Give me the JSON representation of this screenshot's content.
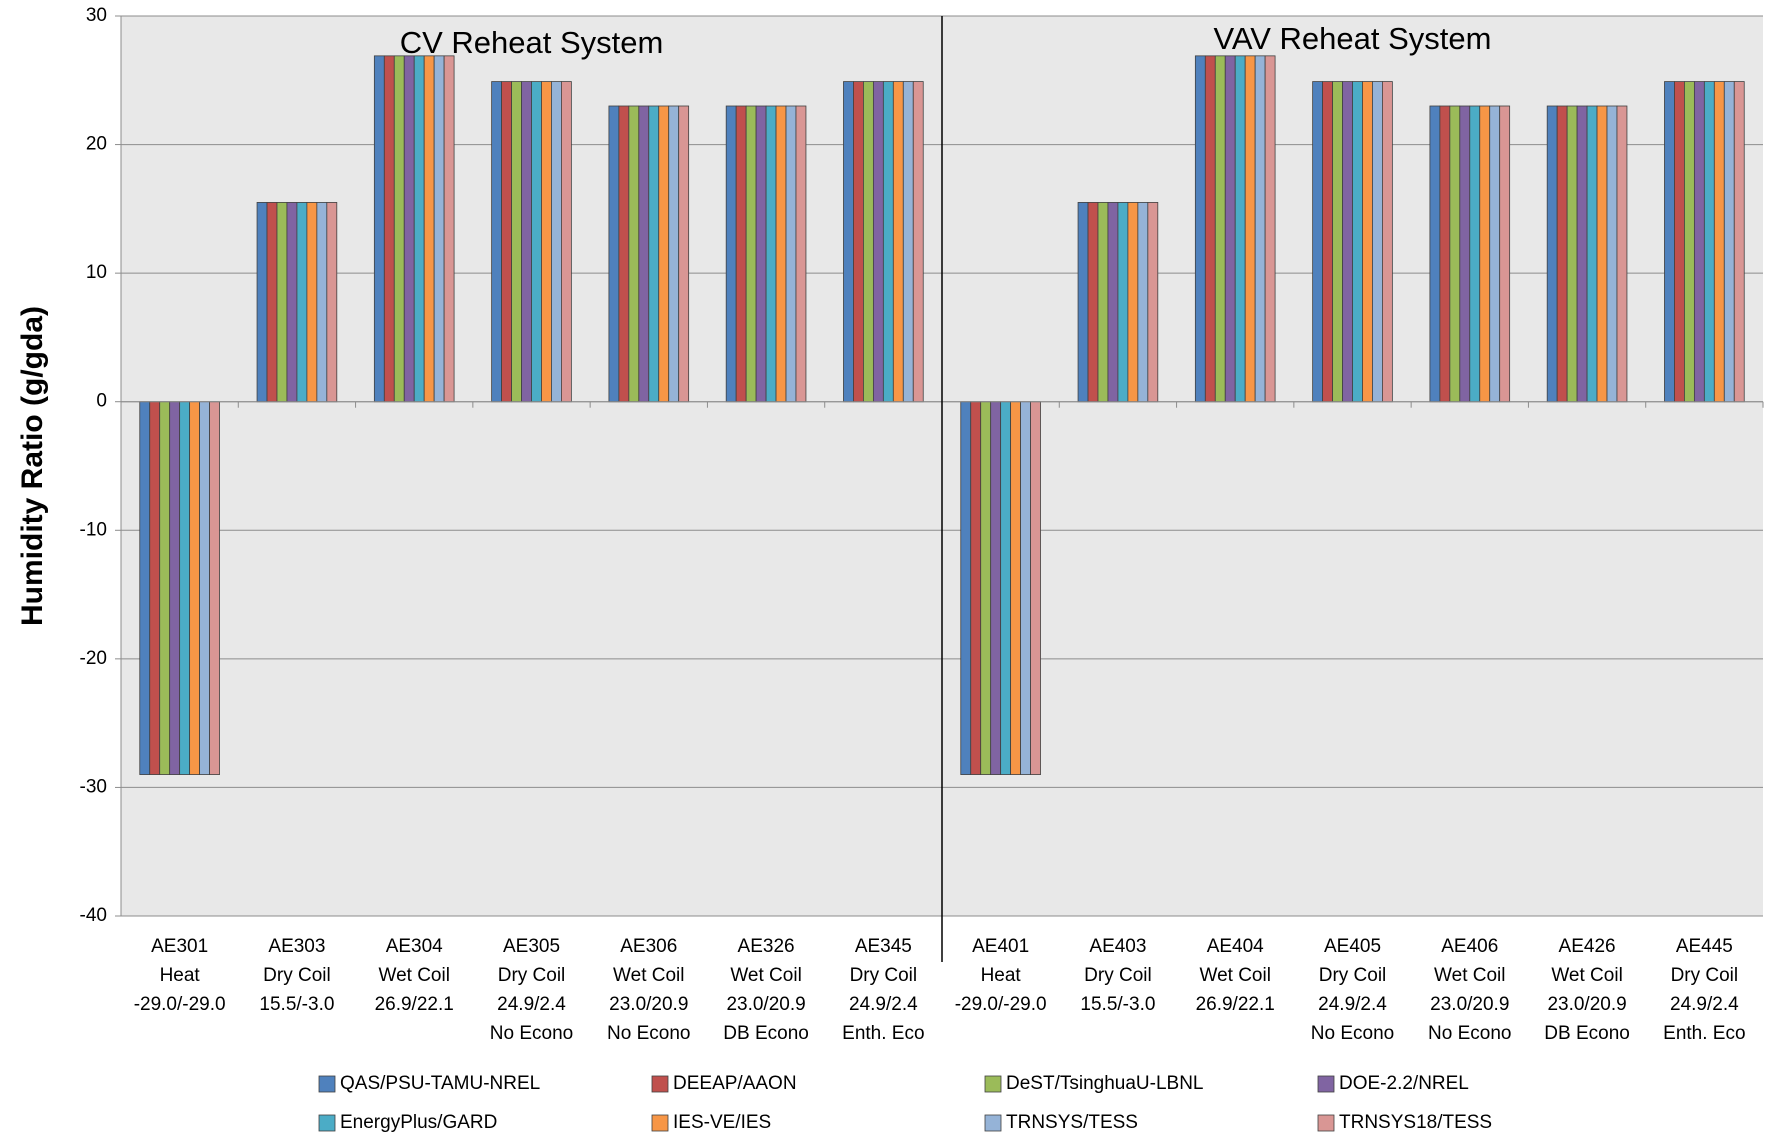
{
  "chart_data": {
    "type": "bar",
    "ylabel": "Humidity Ratio (g/gda)",
    "annotations": [
      "CV Reheat System",
      "VAV Reheat System"
    ],
    "categories": [
      [
        "AE301",
        "Heat",
        "-29.0/-29.0"
      ],
      [
        "AE303",
        "Dry Coil",
        "15.5/-3.0"
      ],
      [
        "AE304",
        "Wet Coil",
        "26.9/22.1"
      ],
      [
        "AE305",
        "Dry Coil",
        "24.9/2.4",
        "No Econo"
      ],
      [
        "AE306",
        "Wet Coil",
        "23.0/20.9",
        "No Econo"
      ],
      [
        "AE326",
        "Wet Coil",
        "23.0/20.9",
        "DB  Econo"
      ],
      [
        "AE345",
        "Dry Coil",
        "24.9/2.4",
        "Enth. Eco"
      ],
      [
        "AE401",
        "Heat",
        "-29.0/-29.0"
      ],
      [
        "AE403",
        "Dry Coil",
        "15.5/-3.0"
      ],
      [
        "AE404",
        "Wet Coil",
        "26.9/22.1"
      ],
      [
        "AE405",
        "Dry Coil",
        "24.9/2.4",
        "No Econo"
      ],
      [
        "AE406",
        "Wet Coil",
        "23.0/20.9",
        "No Econo"
      ],
      [
        "AE426",
        "Wet Coil",
        "23.0/20.9",
        "DB  Econo"
      ],
      [
        "AE445",
        "Dry Coil",
        "24.9/2.4",
        "Enth. Eco"
      ]
    ],
    "series": [
      {
        "name": "QAS/PSU-TAMU-NREL",
        "color": "#4f81bd",
        "values": [
          -29.0,
          15.5,
          26.9,
          24.9,
          23.0,
          23.0,
          24.9,
          -29.0,
          15.5,
          26.9,
          24.9,
          23.0,
          23.0,
          24.9
        ]
      },
      {
        "name": "DEEAP/AAON",
        "color": "#c0504d",
        "values": [
          -29.0,
          15.5,
          26.9,
          24.9,
          23.0,
          23.0,
          24.9,
          -29.0,
          15.5,
          26.9,
          24.9,
          23.0,
          23.0,
          24.9
        ]
      },
      {
        "name": "DeST/TsinghuaU-LBNL",
        "color": "#9bbb59",
        "values": [
          -29.0,
          15.5,
          26.9,
          24.9,
          23.0,
          23.0,
          24.9,
          -29.0,
          15.5,
          26.9,
          24.9,
          23.0,
          23.0,
          24.9
        ]
      },
      {
        "name": "DOE-2.2/NREL",
        "color": "#8064a2",
        "values": [
          -29.0,
          15.5,
          26.9,
          24.9,
          23.0,
          23.0,
          24.9,
          -29.0,
          15.5,
          26.9,
          24.9,
          23.0,
          23.0,
          24.9
        ]
      },
      {
        "name": "EnergyPlus/GARD",
        "color": "#4bacc6",
        "values": [
          -29.0,
          15.5,
          26.9,
          24.9,
          23.0,
          23.0,
          24.9,
          -29.0,
          15.5,
          26.9,
          24.9,
          23.0,
          23.0,
          24.9
        ]
      },
      {
        "name": "IES-VE/IES",
        "color": "#f79646",
        "values": [
          -29.0,
          15.5,
          26.9,
          24.9,
          23.0,
          23.0,
          24.9,
          -29.0,
          15.5,
          26.9,
          24.9,
          23.0,
          23.0,
          24.9
        ]
      },
      {
        "name": "TRNSYS/TESS",
        "color": "#95b3d7",
        "values": [
          -29.0,
          15.5,
          26.9,
          24.9,
          23.0,
          23.0,
          24.9,
          -29.0,
          15.5,
          26.9,
          24.9,
          23.0,
          23.0,
          24.9
        ]
      },
      {
        "name": "TRNSYS18/TESS",
        "color": "#d99694",
        "values": [
          -29.0,
          15.5,
          26.9,
          24.9,
          23.0,
          23.0,
          24.9,
          -29.0,
          15.5,
          26.9,
          24.9,
          23.0,
          23.0,
          24.9
        ]
      }
    ],
    "ylim": [
      -40,
      30
    ],
    "yticks": [
      -40,
      -30,
      -20,
      -10,
      0,
      10,
      20,
      30
    ],
    "grid": true
  }
}
